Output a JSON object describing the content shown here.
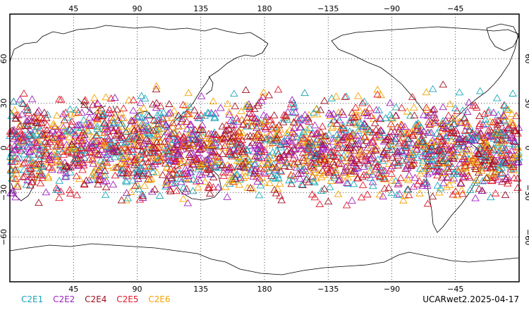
{
  "map": {
    "projection": "cylindrical-equidistant",
    "lon_range": [
      0,
      360
    ],
    "lat_range": [
      -90,
      90
    ],
    "top_lon_ticks": [
      "45",
      "90",
      "135",
      "180",
      "−135",
      "−90",
      "−45"
    ],
    "bottom_lon_ticks": [
      "45",
      "90",
      "135",
      "180",
      "−135",
      "−90",
      "−45"
    ],
    "lat_ticks": [
      "60",
      "30",
      "0",
      "−30",
      "−60"
    ],
    "grid": "dotted",
    "marker_shape": "open-triangle",
    "occultation_lat_band": [
      -45,
      45
    ]
  },
  "legend": {
    "items": [
      {
        "label": "C2E1",
        "color": "#1aa7b8"
      },
      {
        "label": "C2E2",
        "color": "#a020c0"
      },
      {
        "label": "C2E4",
        "color": "#a01020"
      },
      {
        "label": "C2E5",
        "color": "#e0182a"
      },
      {
        "label": "C2E6",
        "color": "#f5a300"
      }
    ]
  },
  "footer": {
    "title": "UCARwet2.2025-04-17"
  }
}
